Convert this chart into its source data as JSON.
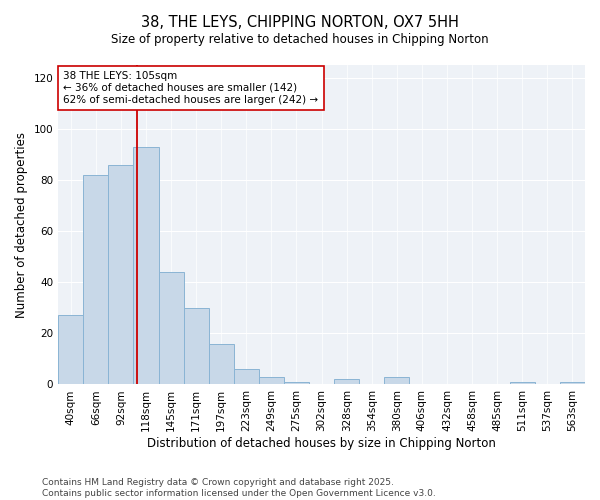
{
  "title": "38, THE LEYS, CHIPPING NORTON, OX7 5HH",
  "subtitle": "Size of property relative to detached houses in Chipping Norton",
  "xlabel": "Distribution of detached houses by size in Chipping Norton",
  "ylabel": "Number of detached properties",
  "categories": [
    "40sqm",
    "66sqm",
    "92sqm",
    "118sqm",
    "145sqm",
    "171sqm",
    "197sqm",
    "223sqm",
    "249sqm",
    "275sqm",
    "302sqm",
    "328sqm",
    "354sqm",
    "380sqm",
    "406sqm",
    "432sqm",
    "458sqm",
    "485sqm",
    "511sqm",
    "537sqm",
    "563sqm"
  ],
  "values": [
    27,
    82,
    86,
    93,
    44,
    30,
    16,
    6,
    3,
    1,
    0,
    2,
    0,
    3,
    0,
    0,
    0,
    0,
    1,
    0,
    1
  ],
  "bar_color": "#c8d8e8",
  "bar_edge_color": "#8ab4d4",
  "ylim": [
    0,
    125
  ],
  "yticks": [
    0,
    20,
    40,
    60,
    80,
    100,
    120
  ],
  "property_label": "38 THE LEYS: 105sqm",
  "annotation_line1": "← 36% of detached houses are smaller (142)",
  "annotation_line2": "62% of semi-detached houses are larger (242) →",
  "vline_color": "#cc0000",
  "background_color": "#eef2f7",
  "footer": "Contains HM Land Registry data © Crown copyright and database right 2025.\nContains public sector information licensed under the Open Government Licence v3.0.",
  "title_fontsize": 10.5,
  "axis_label_fontsize": 8.5,
  "tick_fontsize": 7.5,
  "annotation_fontsize": 7.5,
  "footer_fontsize": 6.5,
  "vline_pos": 2.65
}
